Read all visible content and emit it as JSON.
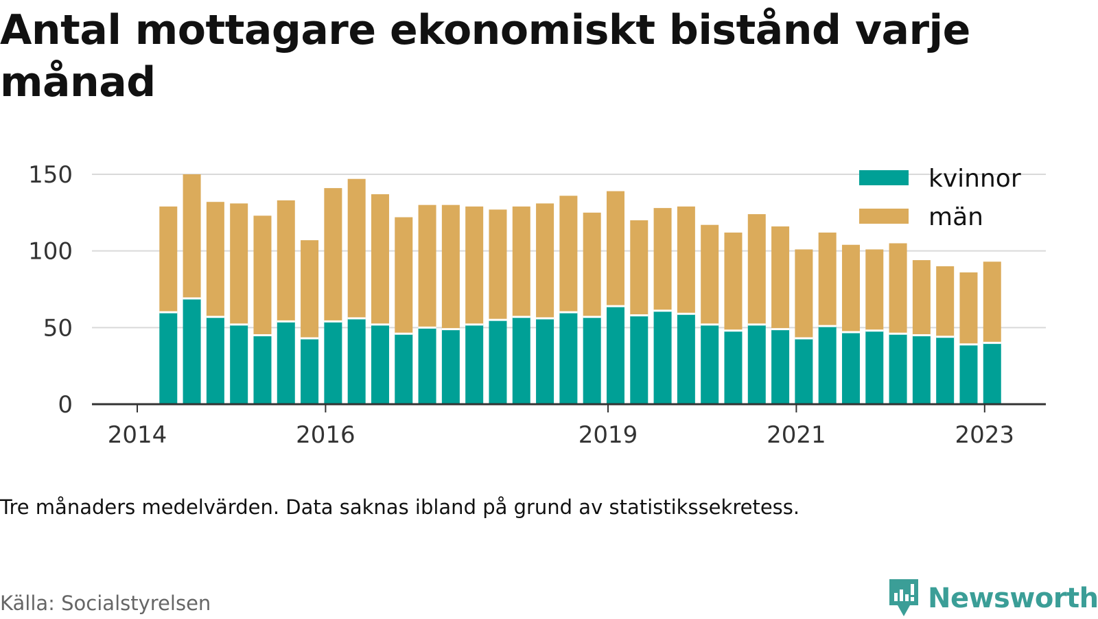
{
  "title": "Antal mottagare ekonomiskt bistånd varje månad",
  "note": "Tre månaders medelvärden. Data saknas ibland på grund av statistikssekretess.",
  "source": "Källa: Socialstyrelsen",
  "brand": "Newsworthy",
  "brand_icon": "newsworthy-logo-icon",
  "colors": {
    "kvinnor": "#00a096",
    "man": "#dbab5b",
    "axis": "#333333",
    "grid": "#d9d9d9"
  },
  "chart_data": {
    "type": "bar",
    "stacked": true,
    "ylim": [
      0,
      150
    ],
    "yticks": [
      0,
      50,
      100,
      150
    ],
    "xticks": [
      {
        "label": "2014",
        "pos": 2014.0
      },
      {
        "label": "2016",
        "pos": 2016.0
      },
      {
        "label": "2019",
        "pos": 2019.0
      },
      {
        "label": "2021",
        "pos": 2021.0
      },
      {
        "label": "2023",
        "pos": 2023.0
      }
    ],
    "grid": true,
    "legend_position": "top-right",
    "x": [
      2014.33,
      2014.58,
      2014.83,
      2015.08,
      2015.33,
      2015.58,
      2015.83,
      2016.08,
      2016.33,
      2016.58,
      2016.83,
      2017.08,
      2017.33,
      2017.58,
      2017.83,
      2018.08,
      2018.33,
      2018.58,
      2018.83,
      2019.08,
      2019.33,
      2019.58,
      2019.83,
      2020.08,
      2020.33,
      2020.58,
      2020.83,
      2021.08,
      2021.33,
      2021.58,
      2021.83,
      2022.08,
      2022.33,
      2022.58,
      2022.83,
      2023.08
    ],
    "series": [
      {
        "name": "kvinnor",
        "values": [
          60,
          69,
          57,
          52,
          45,
          54,
          43,
          54,
          56,
          52,
          46,
          50,
          49,
          52,
          55,
          57,
          56,
          60,
          57,
          64,
          58,
          61,
          59,
          52,
          48,
          52,
          49,
          43,
          51,
          47,
          48,
          46,
          45,
          44,
          39,
          40
        ]
      },
      {
        "name": "män",
        "values": [
          69,
          81,
          75,
          79,
          78,
          79,
          64,
          87,
          91,
          85,
          76,
          80,
          81,
          77,
          72,
          72,
          75,
          76,
          68,
          75,
          62,
          67,
          70,
          65,
          64,
          72,
          67,
          58,
          61,
          57,
          53,
          59,
          49,
          46,
          47,
          53
        ]
      }
    ]
  }
}
